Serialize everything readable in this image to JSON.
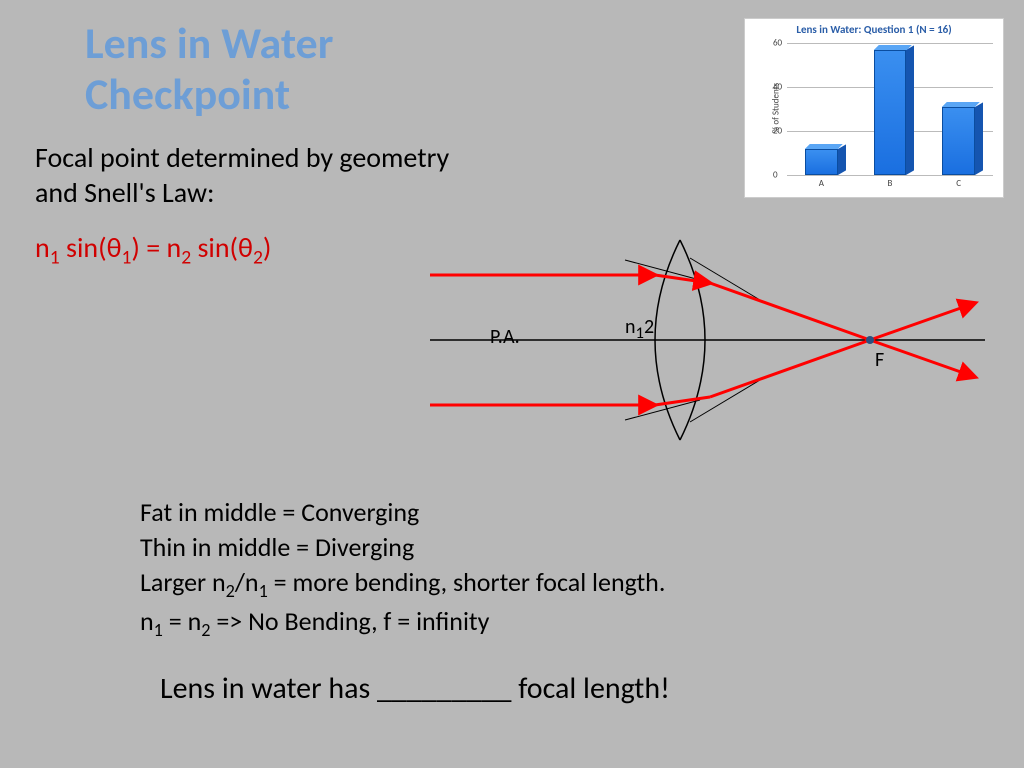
{
  "title_line1": "Lens in Water",
  "title_line2": "Checkpoint",
  "subtitle_line1": "Focal point determined by geometry",
  "subtitle_line2": "and Snell's Law:",
  "snell_html": "n<sub>1</sub> sin(θ<sub>1</sub>) = n<sub>2</sub> sin(θ<sub>2</sub>)",
  "bullets": {
    "b1": "Fat in middle = Converging",
    "b2": "Thin in middle = Diverging",
    "b3_html": "Larger n<sub>2</sub>/n<sub>1</sub> = more bending, shorter focal length.",
    "b4_html": "n<sub>1</sub> = n<sub>2</sub>  => No Bending, f = infinity"
  },
  "bottom_line": "Lens in water has _________ focal length!",
  "chart": {
    "title": "Lens in Water: Question 1 (N = 16)",
    "ylabel": "% of Students",
    "ymax": 60,
    "ytick_step": 20,
    "categories": [
      "A",
      "B",
      "C"
    ],
    "values": [
      12,
      57,
      31
    ],
    "bar_color": "#2a7fe8",
    "bar_side_color": "#1555b0",
    "bar_top_color": "#5aa6f5",
    "grid_color": "#bbbbbb",
    "background": "#ffffff",
    "title_color": "#2b5ea8"
  },
  "diagram": {
    "pa_label": "P.A.",
    "n_label_html": "n<sub>1</sub><n<sub>2</sub>",
    "f_label": "F",
    "axis_color": "#000000",
    "lens_color": "#000000",
    "ray_color": "#ff0000",
    "normal_color": "#000000",
    "focal_dot_color": "#2a5080"
  },
  "colors": {
    "background": "#b8b8b8",
    "title": "#6d9ed6",
    "equation": "#d00000",
    "text": "#000000"
  },
  "fonts": {
    "title_size": 44,
    "body_size": 28,
    "bullets_size": 26,
    "bottom_size": 30
  }
}
